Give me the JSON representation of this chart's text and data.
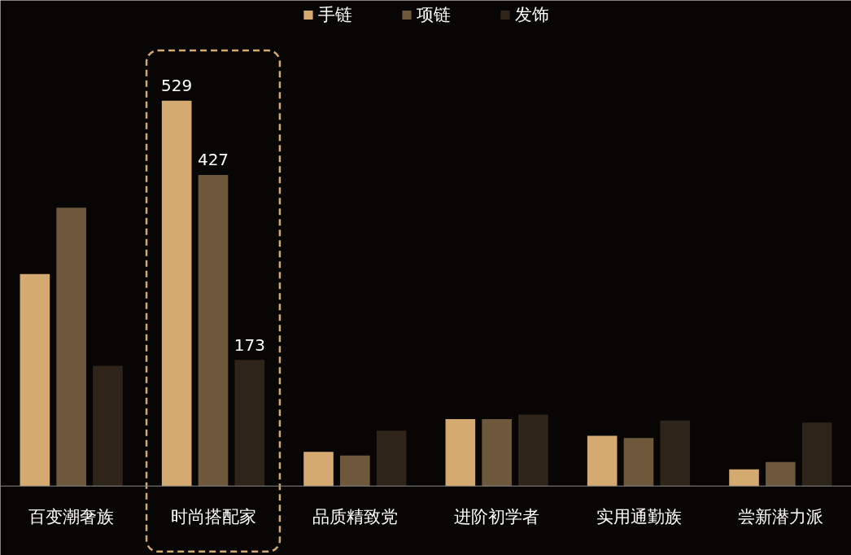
{
  "chart_data": {
    "type": "bar",
    "categories": [
      "百变潮奢族",
      "时尚搭配家",
      "品质精致党",
      "进阶初学者",
      "实用通勤族",
      "尝新潜力派"
    ],
    "series": [
      {
        "name": "手链",
        "color": "#d4aa70",
        "values": [
          291,
          529,
          47,
          92,
          69,
          23
        ],
        "value_labels": [
          null,
          "529",
          null,
          null,
          null,
          null
        ]
      },
      {
        "name": "项链",
        "color": "#6e583c",
        "values": [
          382,
          427,
          42,
          92,
          66,
          33
        ],
        "value_labels": [
          null,
          "427",
          null,
          null,
          null,
          null
        ]
      },
      {
        "name": "发饰",
        "color": "#2e2419",
        "values": [
          165,
          173,
          76,
          98,
          90,
          87
        ],
        "value_labels": [
          null,
          "173",
          null,
          null,
          null,
          null
        ]
      }
    ],
    "legend": "top",
    "grid": false
  }
}
